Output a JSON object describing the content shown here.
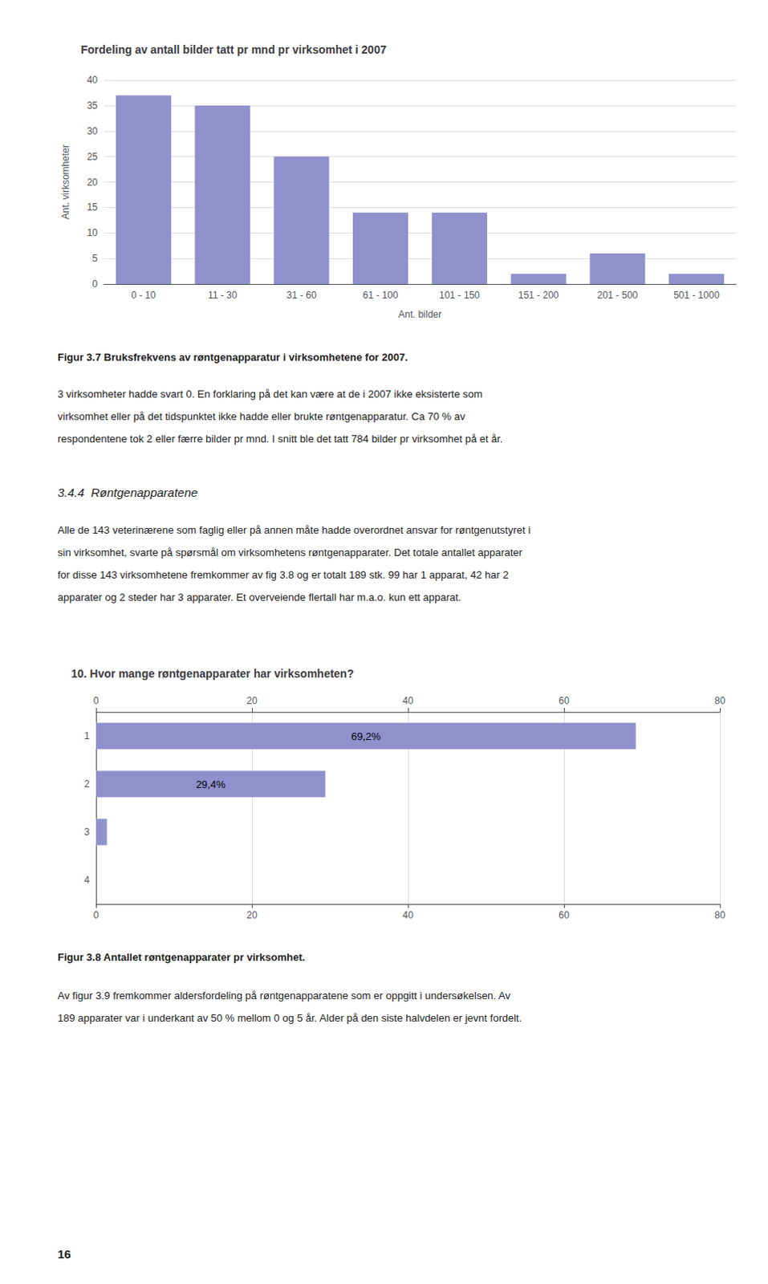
{
  "chart_data": [
    {
      "type": "bar",
      "title": "Fordeling av antall bilder tatt pr mnd pr virksomhet i 2007",
      "categories": [
        "0 - 10",
        "11 - 30",
        "31 - 60",
        "61 - 100",
        "101 - 150",
        "151 - 200",
        "201 - 500",
        "501 - 1000"
      ],
      "values": [
        37,
        35,
        25,
        14,
        14,
        2,
        6,
        2
      ],
      "color": "#9090cc",
      "ylabel": "Ant. virksomheter",
      "xlabel": "Ant. bilder",
      "ylim": [
        0,
        40
      ],
      "yticks": [
        0,
        5,
        10,
        15,
        20,
        25,
        30,
        35,
        40
      ],
      "grid": true,
      "annotations": [
        "Figur 3.7 Bruksfrekvens av røntgenapparatur i virksomhetene for 2007.",
        "3 virksomheter hadde svart 0. En forklaring på det kan være at de i 2007 ikke eksisterte som",
        "virksomhet eller på det tidspunktet ikke hadde eller brukte røntgenapparatur. Ca 70 % av",
        "respondentene tok 2 eller færre bilder pr mnd. I snitt ble det tatt 784 bilder pr virksomhet på et år.",
        "3.4.4  Røntgenapparatene",
        "Alle de 143 veterinærene som faglig eller på annen måte hadde overordnet ansvar for røntgenutstyret i",
        "sin virksomhet, svarte på spørsmål om virksomhetens røntgenapparater. Det totale antallet apparater",
        "for disse 143 virksomhetene fremkommer av fig 3.8 og er totalt 189 stk. 99 har 1 apparat, 42 har 2",
        "apparater og 2 steder har 3 apparater. Et overveiende flertall har m.a.o. kun ett apparat."
      ]
    },
    {
      "type": "bar",
      "orientation": "horizontal",
      "title": "10. Hvor mange røntgenapparater har virksomheten?",
      "categories": [
        "1",
        "2",
        "3",
        "4"
      ],
      "values": [
        69.2,
        29.4,
        1.4,
        0.0
      ],
      "value_labels": [
        "69,2%",
        "29,4%",
        null,
        null
      ],
      "color": "#9090cc",
      "xlim": [
        0,
        80
      ],
      "xticks": [
        0,
        20,
        40,
        60,
        80
      ],
      "grid": true,
      "annotations": [
        "Figur 3.8 Antallet røntgenapparater pr virksomhet.",
        "Av figur 3.9 fremkommer aldersfordeling på røntgenapparatene som er oppgitt i undersøkelsen. Av",
        "189 apparater var i underkant av 50 % mellom 0 og 5 år. Alder på den siste halvdelen er jevnt fordelt.",
        "16"
      ]
    }
  ]
}
